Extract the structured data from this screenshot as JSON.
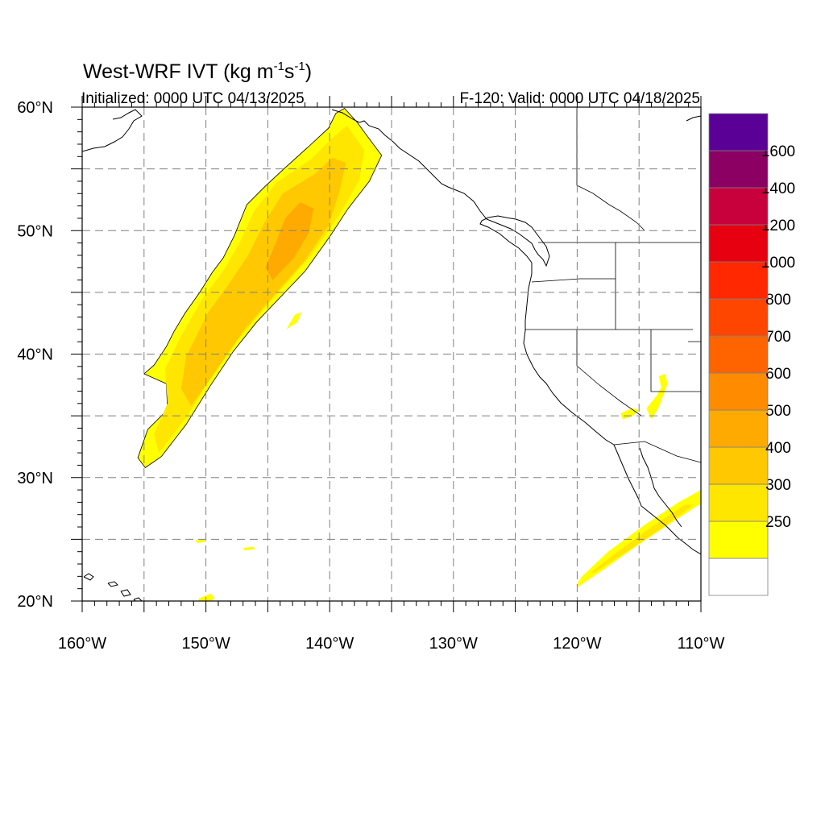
{
  "title": {
    "main": "West-WRF IVT (kg m",
    "sup1": "-1",
    "mid": "s",
    "sup2": "-1",
    "end": ")"
  },
  "initialized": "Initialized: 0000 UTC 04/13/2025",
  "valid": "F-120: Valid: 0000 UTC 04/18/2025",
  "map": {
    "lon_range": [
      -160,
      -110
    ],
    "lat_range": [
      20,
      60
    ],
    "grid": true,
    "grid_lons": [
      -155,
      -150,
      -145,
      -140,
      -135,
      -130,
      -125,
      -120,
      -115
    ],
    "grid_lats": [
      25,
      30,
      35,
      40,
      45,
      50,
      55
    ],
    "lon_ticks": [
      {
        "value": -160,
        "label": "160°W"
      },
      {
        "value": -150,
        "label": "150°W"
      },
      {
        "value": -140,
        "label": "140°W"
      },
      {
        "value": -130,
        "label": "130°W"
      },
      {
        "value": -120,
        "label": "120°W"
      },
      {
        "value": -110,
        "label": "110°W"
      }
    ],
    "lat_ticks": [
      {
        "value": 60,
        "label": "60°N"
      },
      {
        "value": 50,
        "label": "50°N"
      },
      {
        "value": 40,
        "label": "40°N"
      },
      {
        "value": 30,
        "label": "30°N"
      },
      {
        "value": 20,
        "label": "20°N"
      }
    ]
  },
  "colorbar": {
    "levels": [
      {
        "color": "#ffffff"
      },
      {
        "color": "#ffff00",
        "label": "250"
      },
      {
        "color": "#ffe600",
        "label": "300"
      },
      {
        "color": "#ffc800",
        "label": "400"
      },
      {
        "color": "#ffaa00",
        "label": "500"
      },
      {
        "color": "#ff8c00",
        "label": "600"
      },
      {
        "color": "#ff6400",
        "label": "700"
      },
      {
        "color": "#ff4600",
        "label": "800"
      },
      {
        "color": "#ff2800",
        "label": "1000"
      },
      {
        "color": "#e60010",
        "label": "1200"
      },
      {
        "color": "#c8003c",
        "label": "1400"
      },
      {
        "color": "#8c0064",
        "label": "1600"
      },
      {
        "color": "#5a0096"
      }
    ]
  },
  "chart_data": {
    "type": "heatmap",
    "title": "West-WRF IVT (kg m-1s-1)",
    "xlabel": "",
    "ylabel": "",
    "xlim": [
      -160,
      -110
    ],
    "ylim": [
      20,
      60
    ],
    "units": "kg m-1 s-1",
    "features": [
      {
        "level": 250,
        "lonlat": [
          [
            -154.9,
            30.8
          ],
          [
            -153.6,
            31.7
          ],
          [
            -151.6,
            34.3
          ],
          [
            -149.6,
            37.5
          ],
          [
            -147.8,
            40.2
          ],
          [
            -145.9,
            42.6
          ],
          [
            -142.0,
            46.7
          ],
          [
            -140.0,
            49.5
          ],
          [
            -138.5,
            51.8
          ],
          [
            -136.8,
            54.0
          ],
          [
            -135.8,
            56.1
          ],
          [
            -136.7,
            57.3
          ],
          [
            -137.8,
            58.8
          ],
          [
            -138.8,
            59.9
          ],
          [
            -139.5,
            59.5
          ],
          [
            -140.1,
            58.3
          ],
          [
            -141.6,
            56.9
          ],
          [
            -143.7,
            55.0
          ],
          [
            -145.2,
            53.6
          ],
          [
            -146.7,
            52.1
          ],
          [
            -147.7,
            49.6
          ],
          [
            -148.6,
            47.8
          ],
          [
            -149.5,
            46.6
          ],
          [
            -150.5,
            45.0
          ],
          [
            -151.7,
            43.3
          ],
          [
            -152.6,
            41.8
          ],
          [
            -153.2,
            40.6
          ],
          [
            -154.2,
            39.1
          ],
          [
            -155.0,
            38.4
          ],
          [
            -153.2,
            37.6
          ],
          [
            -153.1,
            35.5
          ],
          [
            -154.7,
            33.9
          ],
          [
            -155.5,
            31.6
          ]
        ]
      },
      {
        "level": 300,
        "lonlat": [
          [
            -153.8,
            32.0
          ],
          [
            -151.5,
            35.0
          ],
          [
            -148.6,
            39.8
          ],
          [
            -145.2,
            43.8
          ],
          [
            -141.5,
            48.0
          ],
          [
            -139.2,
            51.3
          ],
          [
            -137.6,
            54.1
          ],
          [
            -137.2,
            56.5
          ],
          [
            -138.6,
            58.5
          ],
          [
            -139.8,
            57.5
          ],
          [
            -141.5,
            55.8
          ],
          [
            -144.3,
            53.9
          ],
          [
            -146.1,
            51.6
          ],
          [
            -147.3,
            49.0
          ],
          [
            -148.5,
            46.9
          ],
          [
            -150.2,
            44.6
          ],
          [
            -152.0,
            41.5
          ],
          [
            -153.3,
            38.8
          ],
          [
            -153.1,
            36.0
          ],
          [
            -154.2,
            33.5
          ]
        ]
      },
      {
        "level": 400,
        "lonlat": [
          [
            -151.2,
            35.8
          ],
          [
            -149.5,
            38.2
          ],
          [
            -146.8,
            42.1
          ],
          [
            -144.3,
            45.0
          ],
          [
            -142.0,
            47.6
          ],
          [
            -140.1,
            50.4
          ],
          [
            -139.2,
            53.2
          ],
          [
            -138.7,
            55.5
          ],
          [
            -139.8,
            55.9
          ],
          [
            -141.2,
            54.6
          ],
          [
            -143.8,
            53.0
          ],
          [
            -145.3,
            50.6
          ],
          [
            -146.6,
            48.0
          ],
          [
            -148.0,
            45.9
          ],
          [
            -149.8,
            43.4
          ],
          [
            -151.6,
            39.8
          ],
          [
            -152.0,
            37.2
          ]
        ]
      },
      {
        "level": 500,
        "lonlat": [
          [
            -144.6,
            46.0
          ],
          [
            -142.9,
            47.8
          ],
          [
            -141.7,
            49.8
          ],
          [
            -141.3,
            51.8
          ],
          [
            -142.4,
            52.3
          ],
          [
            -143.6,
            51.0
          ],
          [
            -144.4,
            48.9
          ],
          [
            -145.2,
            47.0
          ]
        ]
      },
      {
        "level": 250,
        "lonlat": [
          [
            -120.0,
            21.1
          ],
          [
            -117.8,
            22.6
          ],
          [
            -115.0,
            24.6
          ],
          [
            -112.0,
            26.6
          ],
          [
            -110.0,
            27.9
          ],
          [
            -110.0,
            29.0
          ],
          [
            -111.8,
            28.0
          ],
          [
            -114.5,
            26.2
          ],
          [
            -117.5,
            24.0
          ],
          [
            -119.6,
            22.0
          ],
          [
            -120.0,
            21.4
          ]
        ]
      },
      {
        "level": 300,
        "lonlat": [
          [
            -118.6,
            22.3
          ],
          [
            -116.0,
            24.0
          ],
          [
            -113.0,
            26.0
          ],
          [
            -110.6,
            27.8
          ],
          [
            -111.3,
            27.8
          ],
          [
            -114.0,
            26.0
          ],
          [
            -117.0,
            23.8
          ],
          [
            -118.9,
            22.3
          ]
        ]
      },
      {
        "level": 250,
        "lonlat": [
          [
            -143.5,
            42.0
          ],
          [
            -142.8,
            43.2
          ],
          [
            -142.3,
            43.4
          ],
          [
            -142.6,
            42.6
          ]
        ]
      },
      {
        "level": 250,
        "lonlat": [
          [
            -114.4,
            35.6
          ],
          [
            -113.6,
            36.6
          ],
          [
            -113.2,
            37.3
          ],
          [
            -113.4,
            38.2
          ],
          [
            -112.9,
            38.4
          ],
          [
            -112.7,
            37.6
          ],
          [
            -113.4,
            35.7
          ],
          [
            -114.0,
            34.7
          ]
        ]
      },
      {
        "level": 250,
        "lonlat": [
          [
            -116.3,
            34.7
          ],
          [
            -115.5,
            35.0
          ],
          [
            -115.0,
            35.5
          ],
          [
            -115.6,
            35.6
          ],
          [
            -116.5,
            35.2
          ]
        ]
      },
      {
        "level": 250,
        "lonlat": [
          [
            -150.6,
            20.2
          ],
          [
            -149.6,
            20.6
          ],
          [
            -149.3,
            20.2
          ],
          [
            -149.8,
            19.9
          ],
          [
            -150.5,
            19.9
          ]
        ]
      },
      {
        "level": 250,
        "lonlat": [
          [
            -150.9,
            24.9
          ],
          [
            -150.2,
            25.0
          ],
          [
            -150.0,
            24.8
          ],
          [
            -150.7,
            24.7
          ]
        ]
      },
      {
        "level": 250,
        "lonlat": [
          [
            -147.0,
            24.3
          ],
          [
            -146.2,
            24.4
          ],
          [
            -146.0,
            24.2
          ],
          [
            -146.9,
            24.1
          ]
        ]
      }
    ]
  }
}
